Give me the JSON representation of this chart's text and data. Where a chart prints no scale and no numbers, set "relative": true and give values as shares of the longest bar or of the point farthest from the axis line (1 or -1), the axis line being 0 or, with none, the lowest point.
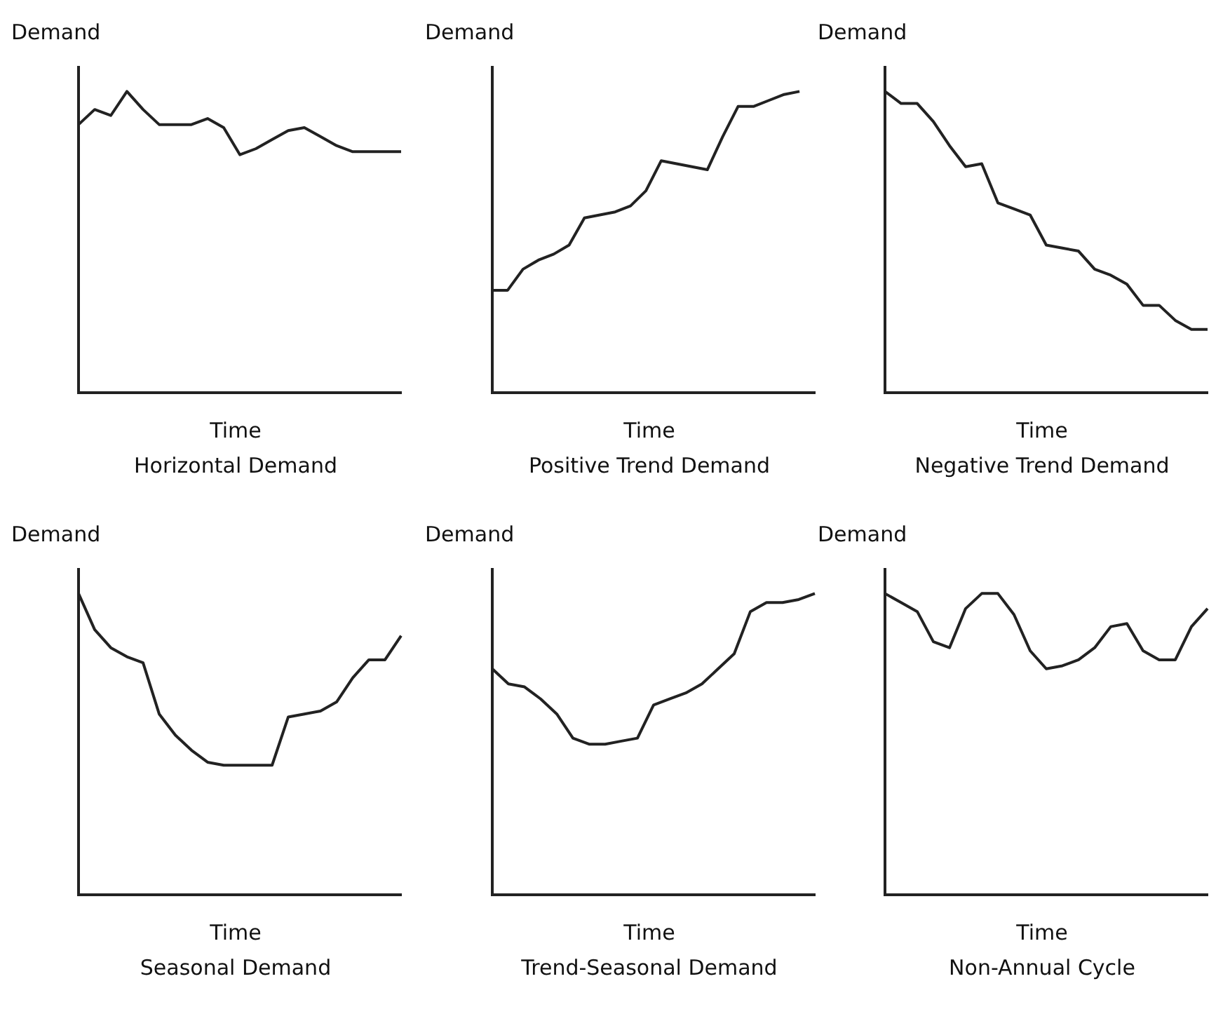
{
  "chart_data": [
    {
      "type": "line",
      "title": "Horizontal Demand",
      "xlabel": "Time",
      "ylabel": "Demand",
      "relative": true,
      "color": "#222222",
      "categories": [
        null,
        null,
        null,
        null,
        null,
        null,
        null,
        null,
        null,
        null,
        null,
        null,
        null,
        null,
        null,
        null,
        null,
        null,
        null,
        null,
        null
      ],
      "values": [
        0.89,
        0.94,
        0.92,
        1,
        0.94,
        0.89,
        0.89,
        0.89,
        0.91,
        0.88,
        0.79,
        0.81,
        0.84,
        0.87,
        0.88,
        0.85,
        0.82,
        0.8,
        0.8,
        0.8,
        0.8
      ]
    },
    {
      "type": "line",
      "title": "Positive Trend Demand",
      "xlabel": "Time",
      "ylabel": "Demand",
      "relative": true,
      "color": "#222222",
      "categories": [
        null,
        null,
        null,
        null,
        null,
        null,
        null,
        null,
        null,
        null,
        null,
        null,
        null,
        null,
        null,
        null,
        null,
        null,
        null,
        null,
        null,
        null
      ],
      "values": [
        0.34,
        0.34,
        0.41,
        0.44,
        0.46,
        0.49,
        0.58,
        0.59,
        0.6,
        0.62,
        0.67,
        0.77,
        0.76,
        0.75,
        0.74,
        0.85,
        0.95,
        0.95,
        0.97,
        0.99,
        1,
        null
      ]
    },
    {
      "type": "line",
      "title": "Negative Trend Demand",
      "xlabel": "Time",
      "ylabel": "Demand",
      "relative": true,
      "color": "#222222",
      "categories": [
        null,
        null,
        null,
        null,
        null,
        null,
        null,
        null,
        null,
        null,
        null,
        null,
        null,
        null,
        null,
        null,
        null,
        null,
        null,
        null,
        null
      ],
      "values": [
        1,
        0.96,
        0.96,
        0.9,
        0.82,
        0.75,
        0.76,
        0.63,
        0.61,
        0.59,
        0.49,
        0.48,
        0.47,
        0.41,
        0.39,
        0.36,
        0.29,
        0.29,
        0.24,
        0.21,
        0.21
      ]
    },
    {
      "type": "line",
      "title": "Seasonal Demand",
      "xlabel": "Time",
      "ylabel": "Demand",
      "relative": true,
      "color": "#222222",
      "categories": [
        null,
        null,
        null,
        null,
        null,
        null,
        null,
        null,
        null,
        null,
        null,
        null,
        null,
        null,
        null,
        null,
        null,
        null,
        null,
        null,
        null
      ],
      "values": [
        1,
        0.88,
        0.82,
        0.79,
        0.77,
        0.6,
        0.53,
        0.48,
        0.44,
        0.43,
        0.43,
        0.43,
        0.43,
        0.59,
        0.6,
        0.61,
        0.64,
        0.72,
        0.78,
        0.78,
        0.86
      ]
    },
    {
      "type": "line",
      "title": "Trend-Seasonal Demand",
      "xlabel": "Time",
      "ylabel": "Demand",
      "relative": true,
      "color": "#222222",
      "categories": [
        null,
        null,
        null,
        null,
        null,
        null,
        null,
        null,
        null,
        null,
        null,
        null,
        null,
        null,
        null,
        null,
        null,
        null,
        null,
        null,
        null
      ],
      "values": [
        0.75,
        0.7,
        0.69,
        0.65,
        0.6,
        0.52,
        0.5,
        0.5,
        0.51,
        0.52,
        0.63,
        0.65,
        0.67,
        0.7,
        0.75,
        0.8,
        0.94,
        0.97,
        0.97,
        0.98,
        1
      ]
    },
    {
      "type": "line",
      "title": "Non-Annual Cycle",
      "xlabel": "Time",
      "ylabel": "Demand",
      "relative": true,
      "color": "#222222",
      "categories": [
        null,
        null,
        null,
        null,
        null,
        null,
        null,
        null,
        null,
        null,
        null,
        null,
        null,
        null,
        null,
        null,
        null,
        null,
        null,
        null,
        null
      ],
      "values": [
        1,
        0.97,
        0.94,
        0.84,
        0.82,
        0.95,
        1,
        1,
        0.93,
        0.81,
        0.75,
        0.76,
        0.78,
        0.82,
        0.89,
        0.9,
        0.81,
        0.78,
        0.78,
        0.89,
        0.95
      ]
    }
  ]
}
